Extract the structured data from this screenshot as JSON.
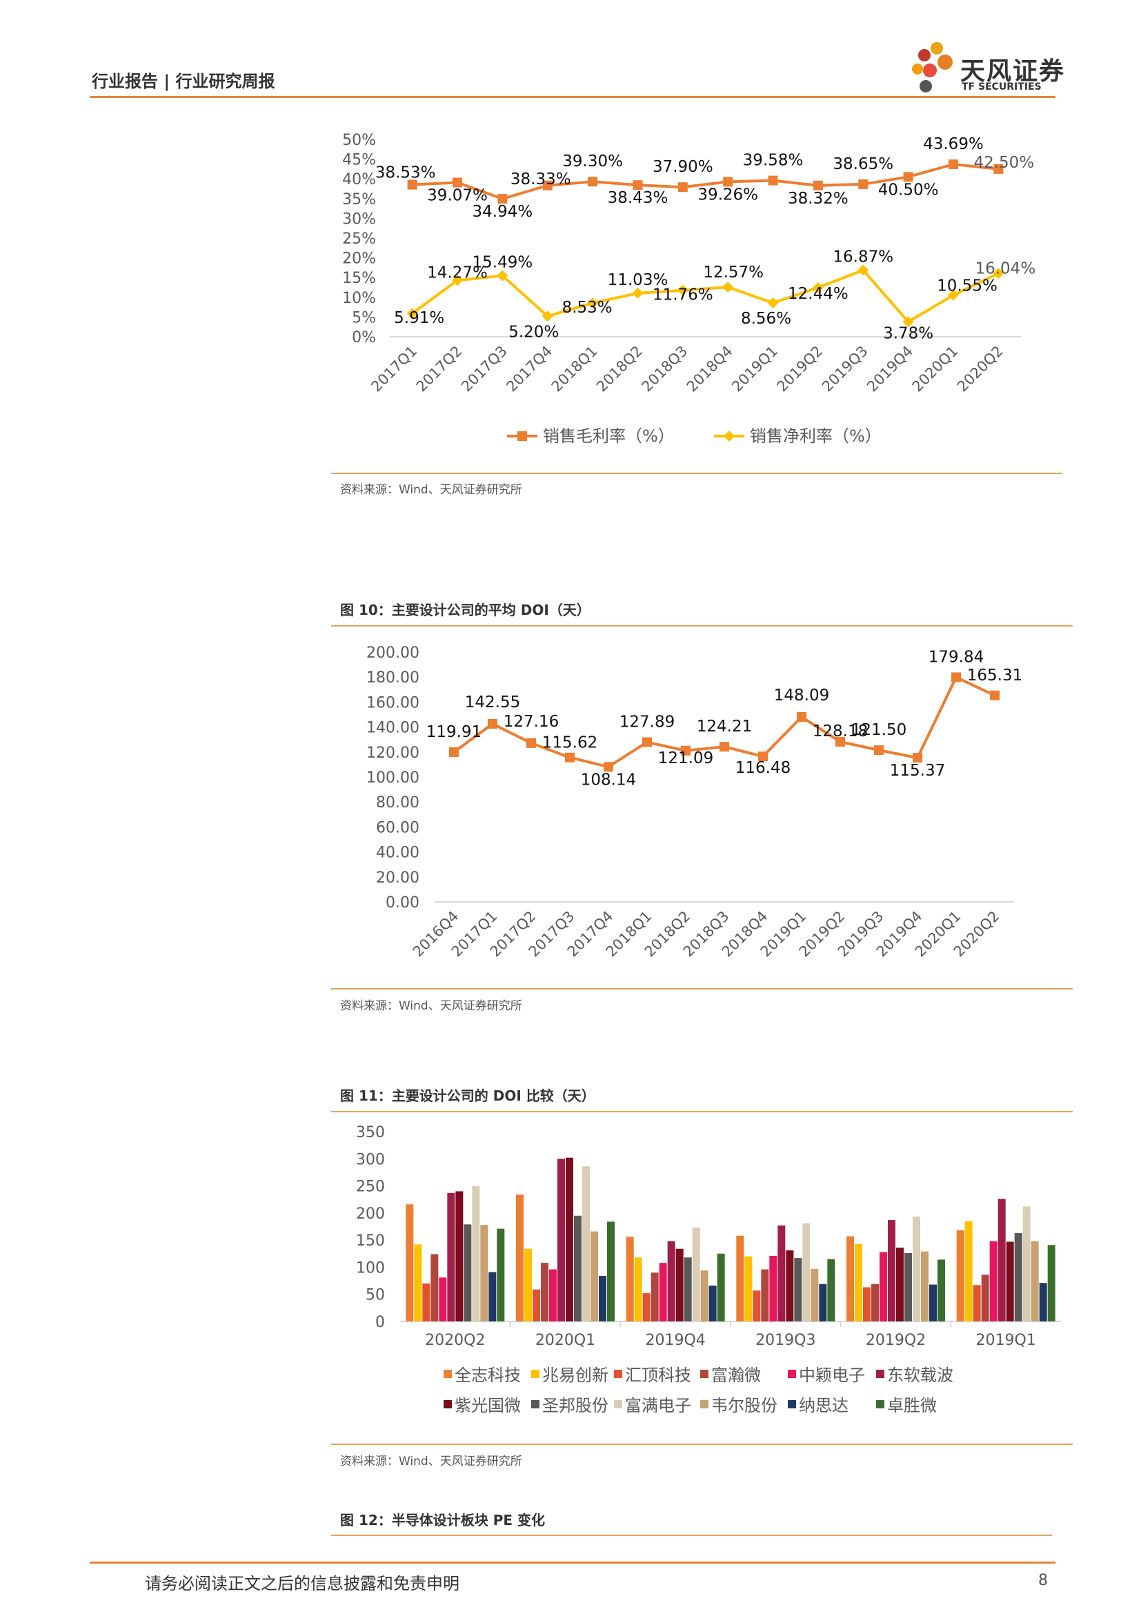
{
  "header": {
    "title": "行业报告 | 行业研究周报"
  },
  "logo": {
    "name_cn": "天风证券",
    "name_en": "TF SECURITIES"
  },
  "source_text": "资料来源：Wind、天风证券研究所",
  "figure10_title": "图 10：主要设计公司的平均 DOI（天）",
  "figure11_title": "图 11：主要设计公司的 DOI 比较（天）",
  "figure12_title": "图 12：半导体设计板块 PE 变化",
  "footer": {
    "disclaimer": "请务必阅读正文之后的信息披露和免责申明",
    "page": "8"
  },
  "colors": {
    "accent": "#E6843B",
    "gross": "#ED7D31",
    "net": "#FFC000"
  },
  "chart_data": [
    {
      "id": "margin",
      "type": "line",
      "title": "",
      "categories": [
        "2017Q1",
        "2017Q2",
        "2017Q3",
        "2017Q4",
        "2018Q1",
        "2018Q2",
        "2018Q3",
        "2018Q4",
        "2019Q1",
        "2019Q2",
        "2019Q3",
        "2019Q4",
        "2020Q1",
        "2020Q2"
      ],
      "yticks": [
        "0%",
        "5%",
        "10%",
        "15%",
        "20%",
        "25%",
        "30%",
        "35%",
        "40%",
        "45%",
        "50%"
      ],
      "ylim": [
        0,
        50
      ],
      "series": [
        {
          "name": "销售毛利率（%）",
          "color": "#ED7D31",
          "marker": "square",
          "values": [
            38.53,
            39.07,
            34.94,
            38.33,
            39.3,
            38.43,
            37.9,
            39.26,
            39.58,
            38.32,
            38.65,
            40.5,
            43.69,
            42.5
          ],
          "labels": [
            "38.53%",
            "39.07%",
            "34.94%",
            "38.33%",
            "39.30%",
            "38.43%",
            "37.90%",
            "39.26%",
            "39.58%",
            "38.32%",
            "38.65%",
            "40.50%",
            "43.69%",
            "42.50%"
          ]
        },
        {
          "name": "销售净利率（%）",
          "color": "#FFC000",
          "marker": "diamond",
          "values": [
            5.91,
            14.27,
            15.49,
            5.2,
            8.53,
            11.03,
            11.76,
            12.57,
            8.56,
            12.44,
            16.87,
            3.78,
            10.55,
            16.04
          ],
          "labels": [
            "5.91%",
            "14.27%",
            "15.49%",
            "5.20%",
            "8.53%",
            "11.03%",
            "11.76%",
            "12.57%",
            "8.56%",
            "12.44%",
            "16.87%",
            "3.78%",
            "10.55%",
            "16.04%"
          ]
        }
      ],
      "legend": "bottom",
      "grid": false
    },
    {
      "id": "doi_avg",
      "type": "line",
      "title": "图 10：主要设计公司的平均 DOI（天）",
      "categories": [
        "2016Q4",
        "2017Q1",
        "2017Q2",
        "2017Q3",
        "2017Q4",
        "2018Q1",
        "2018Q2",
        "2018Q3",
        "2018Q4",
        "2019Q1",
        "2019Q2",
        "2019Q3",
        "2019Q4",
        "2020Q1",
        "2020Q2"
      ],
      "yticks": [
        "0.00",
        "20.00",
        "40.00",
        "60.00",
        "80.00",
        "100.00",
        "120.00",
        "140.00",
        "160.00",
        "180.00",
        "200.00"
      ],
      "ylim": [
        0,
        200
      ],
      "series": [
        {
          "color": "#ED7D31",
          "marker": "square",
          "values": [
            119.91,
            142.55,
            127.16,
            115.62,
            108.14,
            127.89,
            121.09,
            124.21,
            116.48,
            148.09,
            128.18,
            121.5,
            115.37,
            179.84,
            165.31
          ],
          "labels": [
            "119.91",
            "142.55",
            "127.16",
            "115.62",
            "108.14",
            "127.89",
            "121.09",
            "124.21",
            "116.48",
            "148.09",
            "128.18",
            "121.50",
            "115.37",
            "179.84",
            "165.31"
          ]
        }
      ],
      "legend": "none",
      "grid": false
    },
    {
      "id": "doi_compare",
      "type": "bar",
      "title": "图 11：主要设计公司的 DOI 比较（天）",
      "categories": [
        "2020Q2",
        "2020Q1",
        "2019Q4",
        "2019Q3",
        "2019Q2",
        "2019Q1"
      ],
      "yticks": [
        "0",
        "50",
        "100",
        "150",
        "200",
        "250",
        "300",
        "350"
      ],
      "ylim": [
        0,
        350
      ],
      "series": [
        {
          "name": "全志科技",
          "color": "#ED7D31",
          "values": [
            216,
            234,
            156,
            158,
            157,
            168
          ]
        },
        {
          "name": "兆易创新",
          "color": "#FFC000",
          "values": [
            142,
            134,
            118,
            120,
            143,
            185
          ]
        },
        {
          "name": "汇顶科技",
          "color": "#E0532E",
          "values": [
            70,
            59,
            52,
            57,
            63,
            67
          ]
        },
        {
          "name": "富瀚微",
          "color": "#B0463C",
          "values": [
            124,
            108,
            90,
            96,
            69,
            86
          ]
        },
        {
          "name": "中颖电子",
          "color": "#E8175D",
          "values": [
            81,
            96,
            108,
            121,
            128,
            148
          ]
        },
        {
          "name": "东软载波",
          "color": "#A01F4A",
          "values": [
            237,
            300,
            148,
            177,
            187,
            226
          ]
        },
        {
          "name": "紫光国微",
          "color": "#7B0D1E",
          "values": [
            240,
            302,
            134,
            131,
            136,
            147
          ]
        },
        {
          "name": "圣邦股份",
          "color": "#595959",
          "values": [
            179,
            195,
            118,
            117,
            126,
            163
          ]
        },
        {
          "name": "富满电子",
          "color": "#D9CDB4",
          "values": [
            250,
            286,
            173,
            181,
            193,
            212
          ]
        },
        {
          "name": "韦尔股份",
          "color": "#C9A070",
          "values": [
            178,
            166,
            94,
            97,
            129,
            148
          ]
        },
        {
          "name": "纳思达",
          "color": "#203864",
          "values": [
            91,
            84,
            66,
            69,
            68,
            71
          ]
        },
        {
          "name": "卓胜微",
          "color": "#3B6E2E",
          "values": [
            171,
            184,
            125,
            115,
            114,
            141
          ]
        }
      ],
      "legend": "bottom",
      "grid": false
    }
  ]
}
